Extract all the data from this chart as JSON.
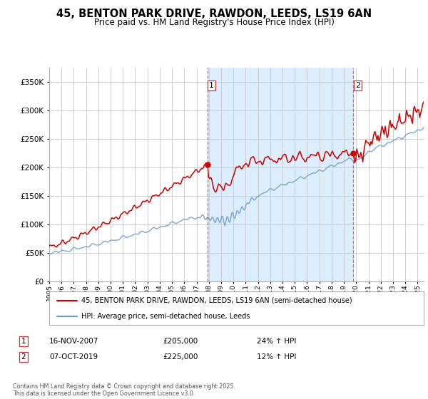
{
  "title": "45, BENTON PARK DRIVE, RAWDON, LEEDS, LS19 6AN",
  "subtitle": "Price paid vs. HM Land Registry's House Price Index (HPI)",
  "ylim": [
    0,
    375000
  ],
  "yticks": [
    0,
    50000,
    100000,
    150000,
    200000,
    250000,
    300000,
    350000
  ],
  "background_color": "#ffffff",
  "grid_color": "#cccccc",
  "sale1_date": "16-NOV-2007",
  "sale1_price": 205000,
  "sale1_hpi": "24% ↑ HPI",
  "sale2_date": "07-OCT-2019",
  "sale2_price": 225000,
  "sale2_hpi": "12% ↑ HPI",
  "line1_color": "#cc0000",
  "line2_color": "#6699cc",
  "shade_color": "#ddeeff",
  "vline_color": "#ee4444",
  "legend_label1": "45, BENTON PARK DRIVE, RAWDON, LEEDS, LS19 6AN (semi-detached house)",
  "legend_label2": "HPI: Average price, semi-detached house, Leeds",
  "footer": "Contains HM Land Registry data © Crown copyright and database right 2025.\nThis data is licensed under the Open Government Licence v3.0.",
  "sale1_vline_x": 2007.88,
  "sale2_vline_x": 2019.77,
  "xmin": 1995,
  "xmax": 2025.5
}
